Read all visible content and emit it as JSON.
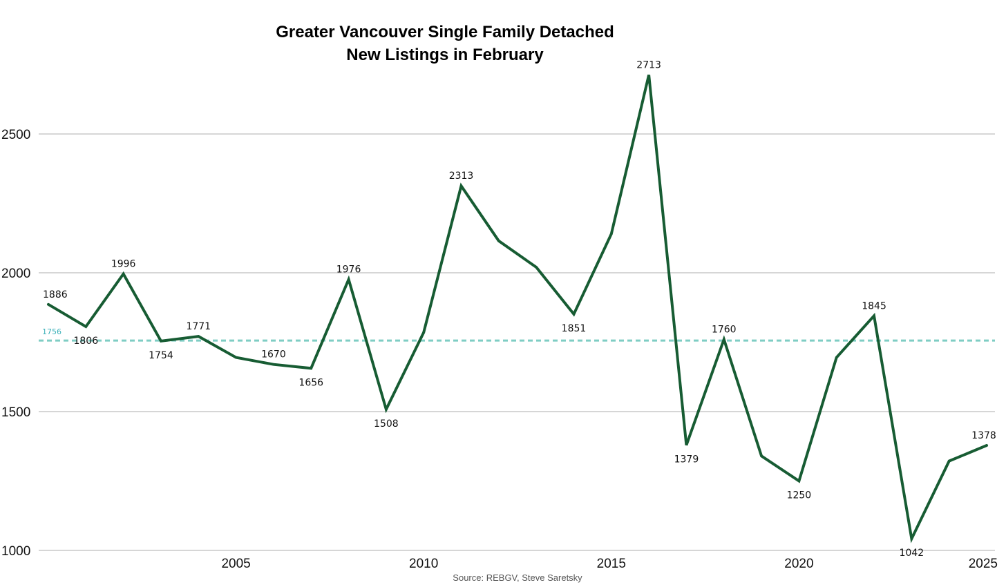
{
  "chart_data": {
    "type": "line",
    "title_lines": [
      "Greater Vancouver Single Family Detached",
      "New Listings in February"
    ],
    "source": "Source: REBGV, Steve Saretsky",
    "xlabel": "",
    "ylabel": "",
    "xlim": [
      2000,
      2025
    ],
    "ylim": [
      1000,
      2750
    ],
    "x_ticks": [
      2005,
      2010,
      2015,
      2020,
      2025
    ],
    "y_ticks": [
      1000,
      1500,
      2000,
      2500
    ],
    "grid": "horizontal",
    "series": [
      {
        "x": [
          2000,
          2001,
          2002,
          2003,
          2004,
          2005,
          2006,
          2007,
          2008,
          2009,
          2010,
          2011,
          2012,
          2013,
          2014,
          2015,
          2016,
          2017,
          2018,
          2019,
          2020,
          2021,
          2022,
          2023,
          2024,
          2025
        ],
        "y": [
          1886,
          1806,
          1996,
          1754,
          1771,
          1695,
          1670,
          1656,
          1976,
          1508,
          1785,
          2313,
          2115,
          2020,
          1851,
          2140,
          2713,
          1379,
          1760,
          1340,
          1250,
          1695,
          1845,
          1042,
          1322,
          1378
        ],
        "color": "#175c33"
      }
    ],
    "data_labels": [
      {
        "x": 2000,
        "text": "1886",
        "pos": "above"
      },
      {
        "x": 2001,
        "text": "1806",
        "pos": "below"
      },
      {
        "x": 2002,
        "text": "1996",
        "pos": "above"
      },
      {
        "x": 2003,
        "text": "1754",
        "pos": "below"
      },
      {
        "x": 2004,
        "text": "1771",
        "pos": "above"
      },
      {
        "x": 2006,
        "text": "1670",
        "pos": "above"
      },
      {
        "x": 2007,
        "text": "1656",
        "pos": "below"
      },
      {
        "x": 2008,
        "text": "1976",
        "pos": "above"
      },
      {
        "x": 2009,
        "text": "1508",
        "pos": "below"
      },
      {
        "x": 2011,
        "text": "2313",
        "pos": "above"
      },
      {
        "x": 2014,
        "text": "1851",
        "pos": "below"
      },
      {
        "x": 2016,
        "text": "2713",
        "pos": "above"
      },
      {
        "x": 2017,
        "text": "1379",
        "pos": "below"
      },
      {
        "x": 2018,
        "text": "1760",
        "pos": "above"
      },
      {
        "x": 2020,
        "text": "1250",
        "pos": "below"
      },
      {
        "x": 2022,
        "text": "1845",
        "pos": "above"
      },
      {
        "x": 2023,
        "text": "1042",
        "pos": "below"
      },
      {
        "x": 2025,
        "text": "1378",
        "pos": "above"
      }
    ],
    "reference_line": {
      "value": 1756,
      "label": "1756",
      "color": "#7fcdc4",
      "label_color": "#3ab0b8",
      "style": "dashed"
    }
  }
}
